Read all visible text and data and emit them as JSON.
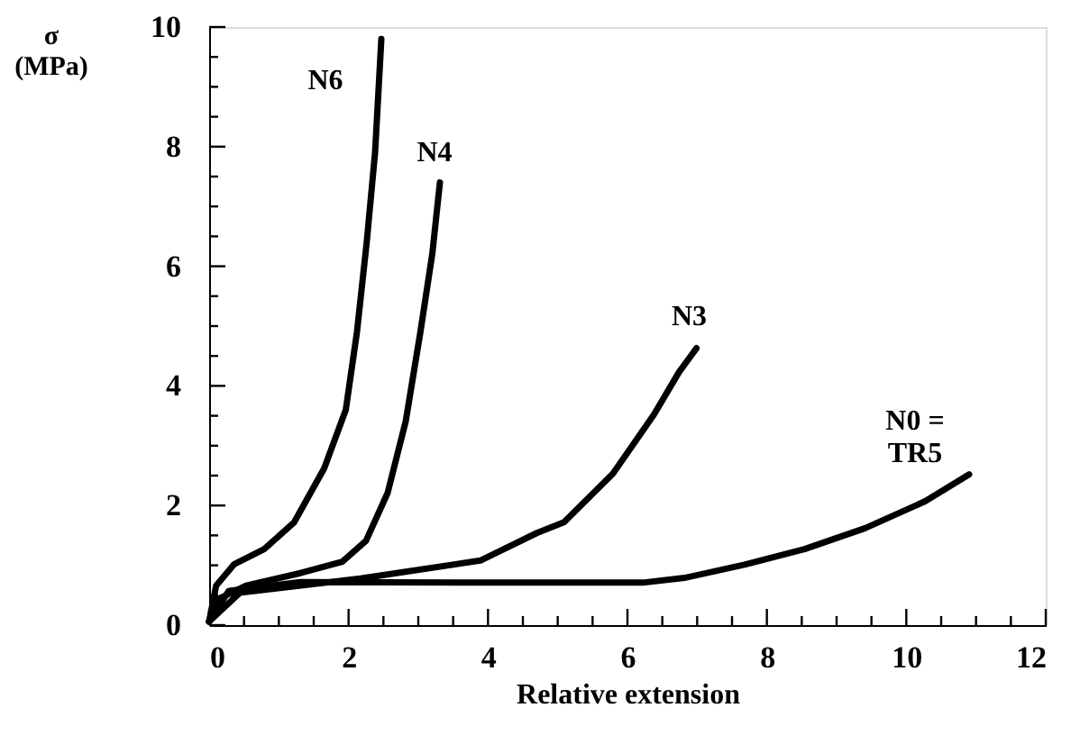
{
  "chart_data": {
    "type": "line",
    "xlabel": "Relative extension",
    "ylabel": "σ (MPa)",
    "xlim": [
      0,
      12
    ],
    "ylim": [
      0,
      10
    ],
    "xticks": [
      0,
      {
        "value": 0.5,
        "label": null
      },
      {
        "value": 1,
        "label": null
      },
      {
        "value": 1.5,
        "label": null
      },
      2,
      {
        "value": 2.5,
        "label": null
      },
      {
        "value": 3,
        "label": null
      },
      {
        "value": 3.5,
        "label": null
      },
      4,
      {
        "value": 4.5,
        "label": null
      },
      {
        "value": 5,
        "label": null
      },
      {
        "value": 5.5,
        "label": null
      },
      6,
      {
        "value": 6.5,
        "label": null
      },
      {
        "value": 7,
        "label": null
      },
      {
        "value": 7.5,
        "label": null
      },
      8,
      {
        "value": 8.5,
        "label": null
      },
      {
        "value": 9,
        "label": null
      },
      {
        "value": 9.5,
        "label": null
      },
      10,
      {
        "value": 10.5,
        "label": null
      },
      {
        "value": 11,
        "label": null
      },
      {
        "value": 11.5,
        "label": null
      },
      12
    ],
    "yticks": [
      0,
      {
        "value": 0.5,
        "label": null
      },
      {
        "value": 1,
        "label": null
      },
      {
        "value": 1.5,
        "label": null
      },
      2,
      {
        "value": 2.5,
        "label": null
      },
      {
        "value": 3,
        "label": null
      },
      {
        "value": 3.5,
        "label": null
      },
      4,
      {
        "value": 4.5,
        "label": null
      },
      {
        "value": 5,
        "label": null
      },
      {
        "value": 5.5,
        "label": null
      },
      6,
      {
        "value": 6.5,
        "label": null
      },
      {
        "value": 7,
        "label": null
      },
      {
        "value": 7.5,
        "label": null
      },
      8,
      {
        "value": 8.5,
        "label": null
      },
      {
        "value": 9,
        "label": null
      },
      {
        "value": 9.5,
        "label": null
      },
      10
    ],
    "grid": false,
    "marker": "none",
    "line_style": "solid",
    "series": [
      {
        "name": "N6",
        "color": "#000000",
        "x": [
          0,
          0.1,
          0.36,
          0.79,
          1.22,
          1.65,
          1.96,
          2.12,
          2.26,
          2.38,
          2.47
        ],
        "values": [
          0.06,
          0.66,
          1.02,
          1.27,
          1.72,
          2.62,
          3.6,
          4.9,
          6.4,
          7.9,
          9.8
        ]
      },
      {
        "name": "N4",
        "color": "#000000",
        "x": [
          0,
          0.1,
          0.53,
          1.31,
          1.91,
          2.25,
          2.56,
          2.82,
          3.03,
          3.2,
          3.31
        ],
        "values": [
          0.06,
          0.42,
          0.66,
          0.87,
          1.06,
          1.41,
          2.21,
          3.41,
          4.9,
          6.2,
          7.4
        ]
      },
      {
        "name": "N3",
        "color": "#000000",
        "x": [
          0,
          0.44,
          2.17,
          3.89,
          4.7,
          5.09,
          5.79,
          6.38,
          6.74,
          6.99
        ],
        "values": [
          0.06,
          0.54,
          0.78,
          1.08,
          1.54,
          1.72,
          2.53,
          3.52,
          4.23,
          4.63
        ]
      },
      {
        "name": "N0 = TR5",
        "color": "#000000",
        "x": [
          0,
          0.28,
          1.31,
          4.24,
          6.22,
          6.82,
          7.68,
          8.54,
          9.41,
          10.27,
          10.9
        ],
        "values": [
          0.06,
          0.57,
          0.72,
          0.71,
          0.71,
          0.79,
          1.01,
          1.27,
          1.62,
          2.07,
          2.52
        ]
      }
    ]
  }
}
